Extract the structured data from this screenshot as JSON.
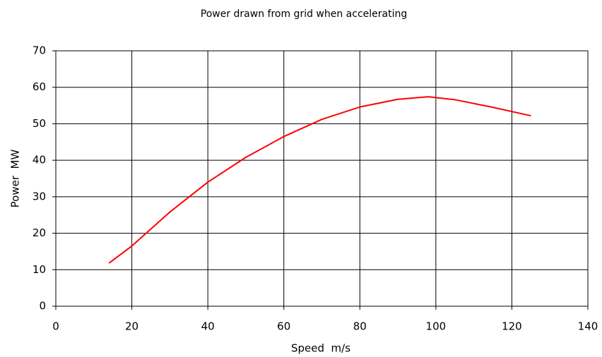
{
  "chart_data": {
    "type": "line",
    "title": "Power drawn from grid when accelerating",
    "x_label": "Speed  m/s",
    "y_label": "Power  MW",
    "x": [
      14,
      20,
      30,
      40,
      50,
      60,
      70,
      80,
      90,
      98,
      105,
      115,
      125
    ],
    "series": [
      {
        "name": "Power",
        "color": "#ff0000",
        "values": [
          11.8,
          16.5,
          25.8,
          34,
          40.8,
          46.5,
          51.2,
          54.6,
          56.7,
          57.4,
          56.6,
          54.5,
          52.2
        ]
      }
    ],
    "xlim": [
      0,
      140
    ],
    "xticks": [
      0,
      20,
      40,
      60,
      80,
      100,
      120,
      140
    ],
    "ylim": [
      0,
      70
    ],
    "yticks": [
      0,
      10,
      20,
      30,
      40,
      50,
      60,
      70
    ],
    "grid": true
  }
}
